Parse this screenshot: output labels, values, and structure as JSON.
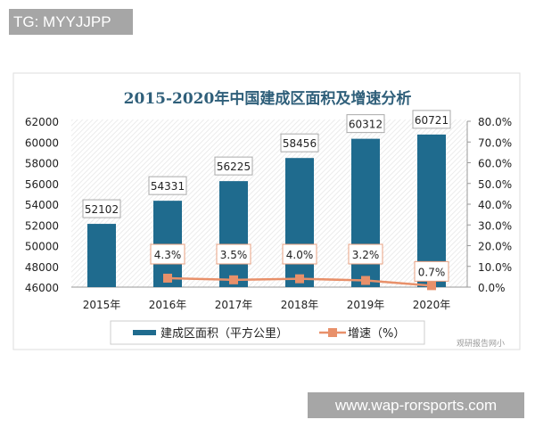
{
  "overlay_top": "TG: MYYJJPP",
  "overlay_bottom": "www.wap-rorsports.com",
  "watermark": "观研报告网小",
  "chart_data": {
    "type": "bar+line",
    "title": "2015-2020年中国建成区面积及增速分析",
    "categories": [
      "2015年",
      "2016年",
      "2017年",
      "2018年",
      "2019年",
      "2020年"
    ],
    "series": [
      {
        "name": "建成区面积（平方公里）",
        "type": "bar",
        "axis": "left",
        "values": [
          52102,
          54331,
          56225,
          58456,
          60312,
          60721
        ],
        "labels": [
          "52102",
          "54331",
          "56225",
          "58456",
          "60312",
          "60721"
        ],
        "color": "#1f6b8e"
      },
      {
        "name": "增速（%）",
        "type": "line",
        "axis": "right",
        "values": [
          null,
          4.3,
          3.5,
          4.0,
          3.2,
          0.7
        ],
        "labels": [
          "",
          "4.3%",
          "3.5%",
          "4.0%",
          "3.2%",
          "0.7%"
        ],
        "color": "#e8906a"
      }
    ],
    "y_left": {
      "range": [
        46000,
        62000
      ],
      "ticks": [
        "46000",
        "48000",
        "50000",
        "52000",
        "54000",
        "56000",
        "58000",
        "60000",
        "62000"
      ]
    },
    "y_right": {
      "range": [
        0,
        80
      ],
      "ticks": [
        "0.0%",
        "10.0%",
        "20.0%",
        "30.0%",
        "40.0%",
        "50.0%",
        "60.0%",
        "70.0%",
        "80.0%"
      ]
    },
    "legend": "bottom",
    "grid": false
  }
}
